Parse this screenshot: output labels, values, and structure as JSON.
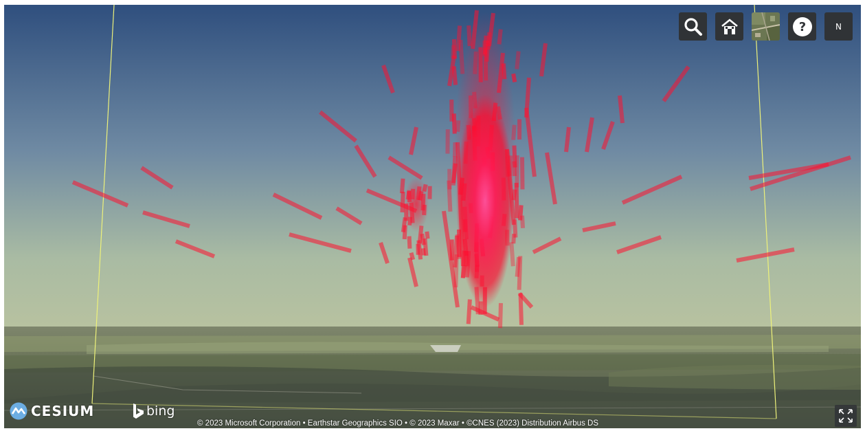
{
  "toolbar": {
    "search_icon": "search-icon",
    "home_icon": "home-icon",
    "base_layer_icon": "base-layer-picker-icon",
    "help_icon": "help-icon",
    "compass_label": "N"
  },
  "credits": {
    "cesium_logo_text": "CESIUM",
    "bing_logo_text": "bing",
    "attribution": "© 2023 Microsoft Corporation • Earthstar Geographics SIO • © 2023 Maxar • ©CNES (2023) Distribution Airbus DS"
  },
  "colors": {
    "track_red": "#ff1030",
    "core_pink": "#ff3f8a",
    "boundary_yellow": "#e8f06a",
    "sky_top": "#3a5680",
    "sky_horizon": "#aab9a0",
    "toolbar_bg": "#303336"
  }
}
